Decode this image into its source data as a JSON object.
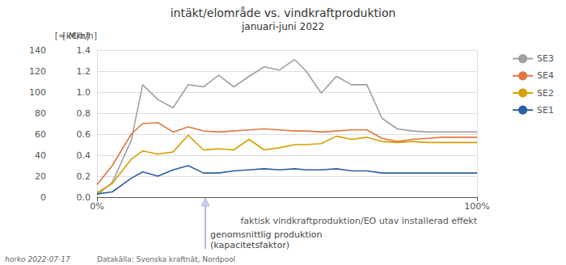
{
  "chart_data": {
    "type": "line",
    "title": "intäkt/elområde vs. vindkraftproduktion",
    "subtitle": "januari-juni 2022",
    "xlabel": "faktisk vindkraftproduktion/EO utav installerad effekt",
    "ylabel": "[k€/h]",
    "y2label": "[≈ Mkr/h]",
    "x": [
      0.0,
      0.04,
      0.09,
      0.12,
      0.16,
      0.2,
      0.24,
      0.28,
      0.32,
      0.36,
      0.4,
      0.44,
      0.48,
      0.52,
      0.55,
      0.59,
      0.63,
      0.67,
      0.71,
      0.75,
      0.79,
      0.83,
      0.87,
      0.91,
      0.95,
      1.0
    ],
    "series": [
      {
        "name": "SE3",
        "color": "#a0a0a0",
        "values": [
          2,
          14,
          54,
          107,
          93,
          85,
          107,
          105,
          116,
          105,
          115,
          124,
          121,
          131,
          120,
          99,
          115,
          107,
          107,
          75,
          65,
          63,
          62,
          62,
          62,
          62
        ]
      },
      {
        "name": "SE4",
        "color": "#e07840",
        "values": [
          12,
          30,
          60,
          70,
          71,
          62,
          67,
          63,
          62,
          63,
          64,
          65,
          64,
          63,
          63,
          62,
          63,
          64,
          64,
          56,
          53,
          55,
          56,
          57,
          57,
          57
        ]
      },
      {
        "name": "SE2",
        "color": "#d4a000",
        "values": [
          4,
          13,
          36,
          44,
          41,
          43,
          59,
          45,
          46,
          45,
          55,
          45,
          47,
          50,
          50,
          51,
          58,
          55,
          57,
          53,
          52,
          53,
          52,
          52,
          52,
          52
        ]
      },
      {
        "name": "SE1",
        "color": "#2e5fa3",
        "values": [
          3,
          5,
          18,
          24,
          20,
          26,
          30,
          23,
          23,
          25,
          26,
          27,
          26,
          27,
          26,
          26,
          27,
          25,
          25,
          23,
          23,
          23,
          23,
          23,
          23,
          23
        ]
      }
    ],
    "xlim": [
      0,
      1.0
    ],
    "xticks": [
      {
        "value": 0,
        "label": "0%"
      },
      {
        "value": 1.0,
        "label": "100%"
      }
    ],
    "ylim": [
      0,
      140
    ],
    "yticks": [
      0,
      20,
      40,
      60,
      80,
      100,
      120,
      140
    ],
    "y2lim": [
      0,
      1.4
    ],
    "y2ticks": [
      {
        "value": 0.0,
        "label": "0.0"
      },
      0.2,
      0.4,
      0.6,
      0.8,
      {
        "value": 1.0,
        "label": "1.0"
      },
      1.2,
      1.4
    ],
    "grid": true,
    "legend": "right",
    "annotations": [
      {
        "text": "genomsnittlig produktion\n(kapacitetsfaktor)",
        "x": 0.285
      }
    ],
    "footer": [
      "horko 2022-07-17",
      "Datakälla: Svenska kraftnät, Nordpool"
    ]
  }
}
